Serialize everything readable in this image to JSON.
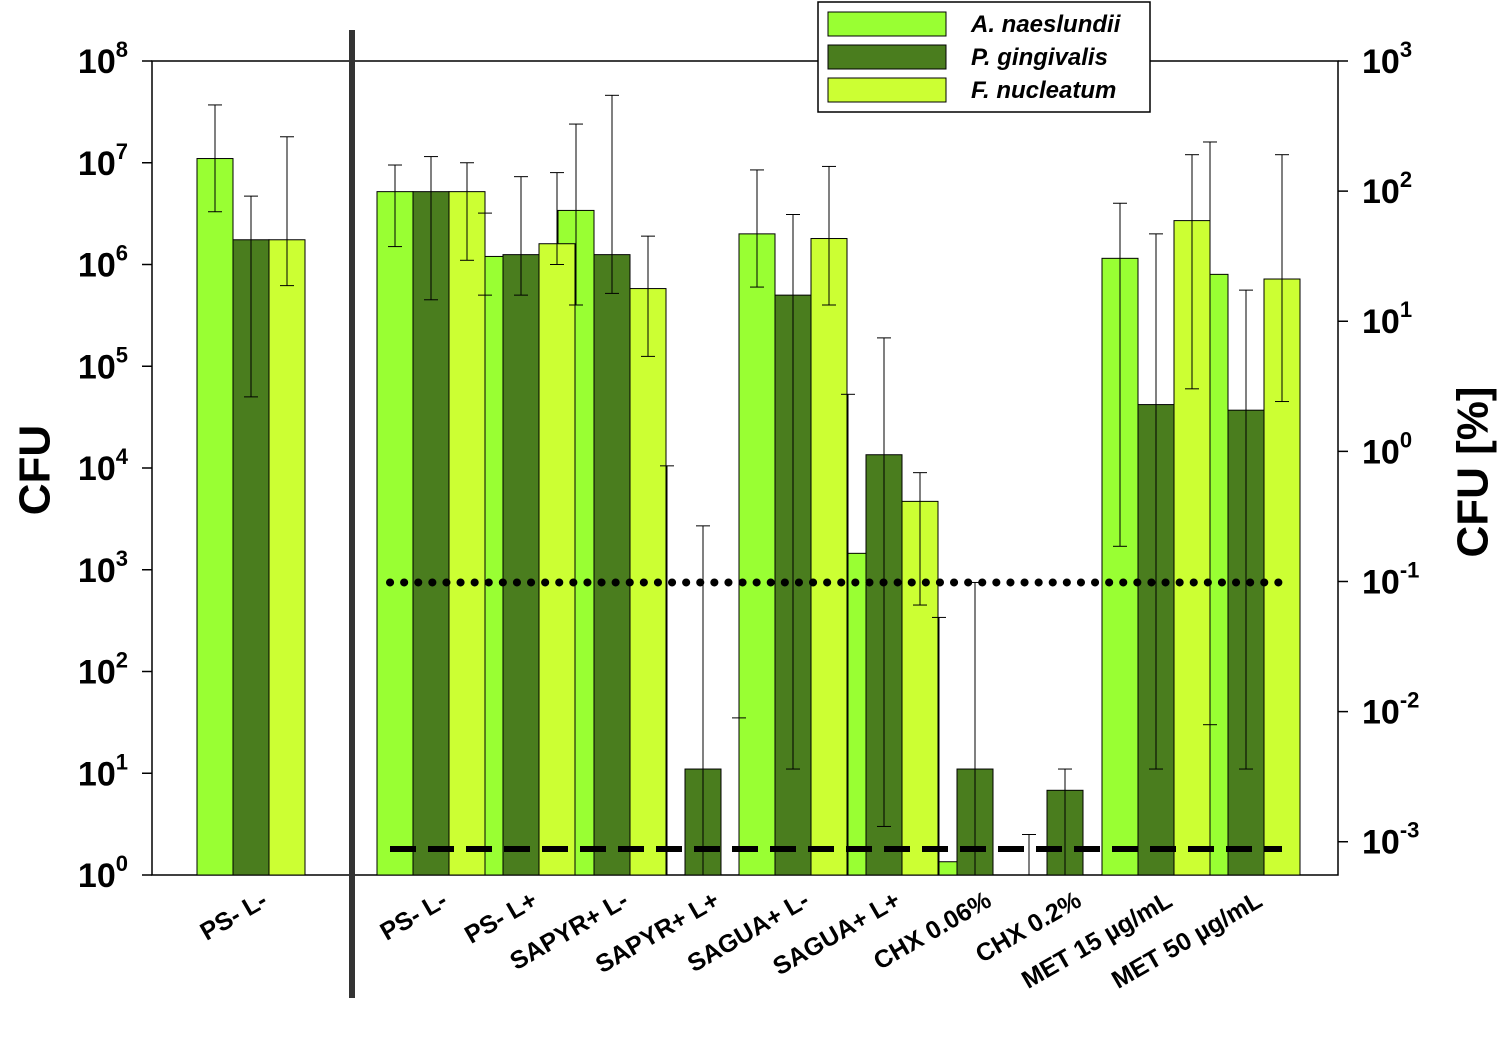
{
  "chart_data": {
    "type": "bar",
    "title": "",
    "ylabel": "CFU",
    "y2label": "CFU [%]",
    "yscale": "log",
    "ylim": [
      1,
      100000000
    ],
    "y2lim_percent": [
      0.000555,
      1000
    ],
    "categories": [
      "PS- L-",
      "PS- L-",
      "PS- L+",
      "SAPYR+ L-",
      "SAPYR+ L+",
      "SAGUA+ L-",
      "SAGUA+ L+",
      "CHX 0.06%",
      "CHX 0.2%",
      "MET 15 µg/mL",
      "MET 50 µg/mL"
    ],
    "left_ticks": [
      {
        "base": "10",
        "exp": "0"
      },
      {
        "base": "10",
        "exp": "1"
      },
      {
        "base": "10",
        "exp": "2"
      },
      {
        "base": "10",
        "exp": "3"
      },
      {
        "base": "10",
        "exp": "4"
      },
      {
        "base": "10",
        "exp": "5"
      },
      {
        "base": "10",
        "exp": "6"
      },
      {
        "base": "10",
        "exp": "7"
      },
      {
        "base": "10",
        "exp": "8"
      }
    ],
    "right_ticks": [
      {
        "base": "10",
        "exp": "-3"
      },
      {
        "base": "10",
        "exp": "-2"
      },
      {
        "base": "10",
        "exp": "-1"
      },
      {
        "base": "10",
        "exp": "0"
      },
      {
        "base": "10",
        "exp": "1"
      },
      {
        "base": "10",
        "exp": "2"
      },
      {
        "base": "10",
        "exp": "3"
      }
    ],
    "series": [
      {
        "name": "A. naeslundii",
        "color": "#99ff33",
        "values": [
          11000000,
          5200000,
          1200000,
          3400000,
          null,
          2000000,
          1450,
          1.35,
          null,
          1150000,
          800000
        ],
        "err_low": [
          3300000,
          1500000,
          500000,
          400000,
          null,
          600000,
          1,
          1,
          null,
          1700,
          30
        ],
        "err_high": [
          37000000,
          9500000,
          3200000,
          24000000,
          10500,
          8500000,
          53000,
          340,
          2.5,
          4000000,
          16000000
        ]
      },
      {
        "name": "P. gingivalis",
        "color": "#4a7d1e",
        "values": [
          1750000,
          5200000,
          1250000,
          1250000,
          11,
          500000,
          13500,
          11,
          6.8,
          42000,
          37000
        ],
        "err_low": [
          50000,
          450000,
          500000,
          520000,
          1,
          11,
          3,
          1,
          1,
          11,
          11
        ],
        "err_high": [
          4700000,
          11500000,
          7300000,
          46000000,
          2700,
          3100000,
          190000,
          750,
          11,
          2000000,
          560000
        ]
      },
      {
        "name": "F. nucleatum",
        "color": "#ccff33",
        "values": [
          1750000,
          5200000,
          1600000,
          580000,
          null,
          1800000,
          4700,
          null,
          null,
          2700000,
          720000
        ],
        "err_low": [
          620000,
          1100000,
          1000000,
          125000,
          null,
          400000,
          450,
          null,
          null,
          60000,
          45000
        ],
        "err_high": [
          18000000,
          10000000,
          8000000,
          1900000,
          35,
          9200000,
          9000,
          null,
          null,
          12000000,
          12000000
        ]
      }
    ],
    "reference_lines": [
      {
        "style": "dotted",
        "y": 750
      },
      {
        "style": "dashed",
        "y": 1.8
      }
    ],
    "legend": {
      "position": "top-right"
    }
  }
}
